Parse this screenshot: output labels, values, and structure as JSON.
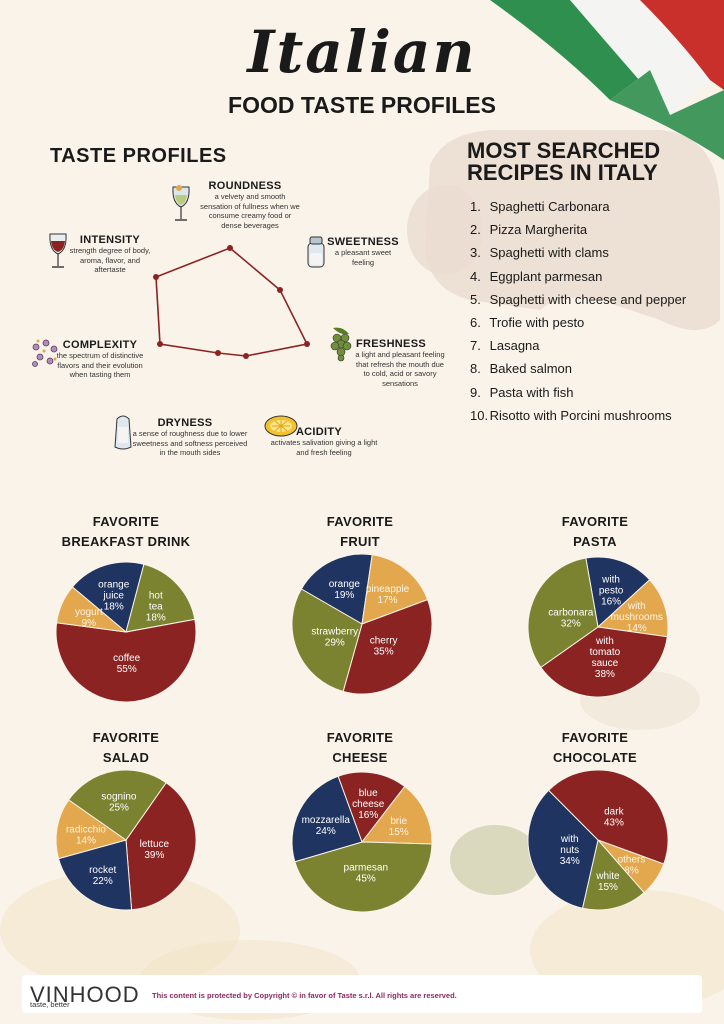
{
  "header": {
    "title_script": "Italian",
    "title_sub": "FOOD TASTE PROFILES"
  },
  "taste_profiles": {
    "title": "TASTE PROFILES",
    "traits": [
      {
        "name": "ROUNDNESS",
        "desc": "a velvety and smooth sensation of fullness when we consume creamy food or dense beverages",
        "icon": "wine-glass-icon"
      },
      {
        "name": "SWEETNESS",
        "desc": "a pleasant sweet feeling",
        "icon": "sugar-jar-icon"
      },
      {
        "name": "FRESHNESS",
        "desc": "a light and pleasant feeling that refresh the mouth due to cold, acid or savory sensations",
        "icon": "grapes-icon"
      },
      {
        "name": "ACIDITY",
        "desc": "activates salivation giving a light and fresh feeling",
        "icon": "lemon-icon"
      },
      {
        "name": "DRYNESS",
        "desc": "a sense of roughness due to lower sweetness and softness perceived in the mouth sides",
        "icon": "salt-shaker-icon"
      },
      {
        "name": "COMPLEXITY",
        "desc": "the spectrum of distinctive flavors and their evolution when tasting them",
        "icon": "spices-icon"
      },
      {
        "name": "INTENSITY",
        "desc": "strength degree of body, aroma, flavor, and aftertaste",
        "icon": "red-wine-icon"
      }
    ]
  },
  "recipes": {
    "title_line1": "MOST SEARCHED",
    "title_line2": "RECIPES IN ITALY",
    "items": [
      {
        "num": "1.",
        "name": "Spaghetti Carbonara"
      },
      {
        "num": "2.",
        "name": "Pizza Margherita"
      },
      {
        "num": "3.",
        "name": "Spaghetti with clams"
      },
      {
        "num": "4.",
        "name": "Eggplant parmesan"
      },
      {
        "num": "5.",
        "name": "Spaghetti with cheese and pepper"
      },
      {
        "num": "6.",
        "name": "Trofie with pesto"
      },
      {
        "num": "7.",
        "name": "Lasagna"
      },
      {
        "num": "8.",
        "name": "Baked salmon"
      },
      {
        "num": "9.",
        "name": "Pasta with fish"
      },
      {
        "num": "10.",
        "name": "Risotto with Porcini mushrooms"
      }
    ]
  },
  "colors": {
    "red": "#8b2323",
    "navy": "#1f3461",
    "olive": "#7b8331",
    "gold": "#e3a84e",
    "bg": "#faf3ea",
    "brand": "#8a2a62"
  },
  "chart_data": [
    {
      "type": "pie",
      "title_line1": "FAVORITE",
      "title_line2": "BREAKFAST DRINK",
      "slices": [
        {
          "label": "orange juice",
          "value": 18,
          "color": "#1f3461"
        },
        {
          "label": "hot tea",
          "value": 18,
          "color": "#7b8331"
        },
        {
          "label": "coffee",
          "value": 55,
          "color": "#8b2323"
        },
        {
          "label": "yogurt",
          "value": 9,
          "color": "#e3a84e"
        }
      ]
    },
    {
      "type": "pie",
      "title_line1": "FAVORITE",
      "title_line2": "FRUIT",
      "slices": [
        {
          "label": "orange",
          "value": 19,
          "color": "#1f3461"
        },
        {
          "label": "pineapple",
          "value": 17,
          "color": "#e3a84e"
        },
        {
          "label": "cherry",
          "value": 35,
          "color": "#8b2323"
        },
        {
          "label": "strawberry",
          "value": 29,
          "color": "#7b8331"
        }
      ]
    },
    {
      "type": "pie",
      "title_line1": "FAVORITE",
      "title_line2": "PASTA",
      "slices": [
        {
          "label": "with pesto",
          "value": 16,
          "color": "#1f3461"
        },
        {
          "label": "with mushrooms",
          "value": 14,
          "color": "#e3a84e"
        },
        {
          "label": "with tomato sauce",
          "value": 38,
          "color": "#8b2323"
        },
        {
          "label": "carbonara",
          "value": 32,
          "color": "#7b8331"
        }
      ]
    },
    {
      "type": "pie",
      "title_line1": "FAVORITE",
      "title_line2": "SALAD",
      "slices": [
        {
          "label": "lettuce",
          "value": 39,
          "color": "#8b2323"
        },
        {
          "label": "rocket",
          "value": 22,
          "color": "#1f3461"
        },
        {
          "label": "radicchio",
          "value": 14,
          "color": "#e3a84e"
        },
        {
          "label": "sognino",
          "value": 25,
          "color": "#7b8331"
        }
      ]
    },
    {
      "type": "pie",
      "title_line1": "FAVORITE",
      "title_line2": "CHEESE",
      "slices": [
        {
          "label": "blue cheese",
          "value": 16,
          "color": "#8b2323"
        },
        {
          "label": "brie",
          "value": 15,
          "color": "#e3a84e"
        },
        {
          "label": "parmesan",
          "value": 45,
          "color": "#7b8331"
        },
        {
          "label": "mozzarella",
          "value": 24,
          "color": "#1f3461"
        }
      ]
    },
    {
      "type": "pie",
      "title_line1": "FAVORITE",
      "title_line2": "CHOCOLATE",
      "slices": [
        {
          "label": "others",
          "value": 8,
          "color": "#e3a84e"
        },
        {
          "label": "white",
          "value": 15,
          "color": "#7b8331"
        },
        {
          "label": "with nuts",
          "value": 34,
          "color": "#1f3461"
        },
        {
          "label": "dark",
          "value": 43,
          "color": "#8b2323"
        }
      ]
    }
  ],
  "footer": {
    "logo": "VINHOOD",
    "tagline": "taste, better",
    "copyright": "This content is protected by Copyright © in favor of Taste s.r.l. All rights are reserved."
  }
}
